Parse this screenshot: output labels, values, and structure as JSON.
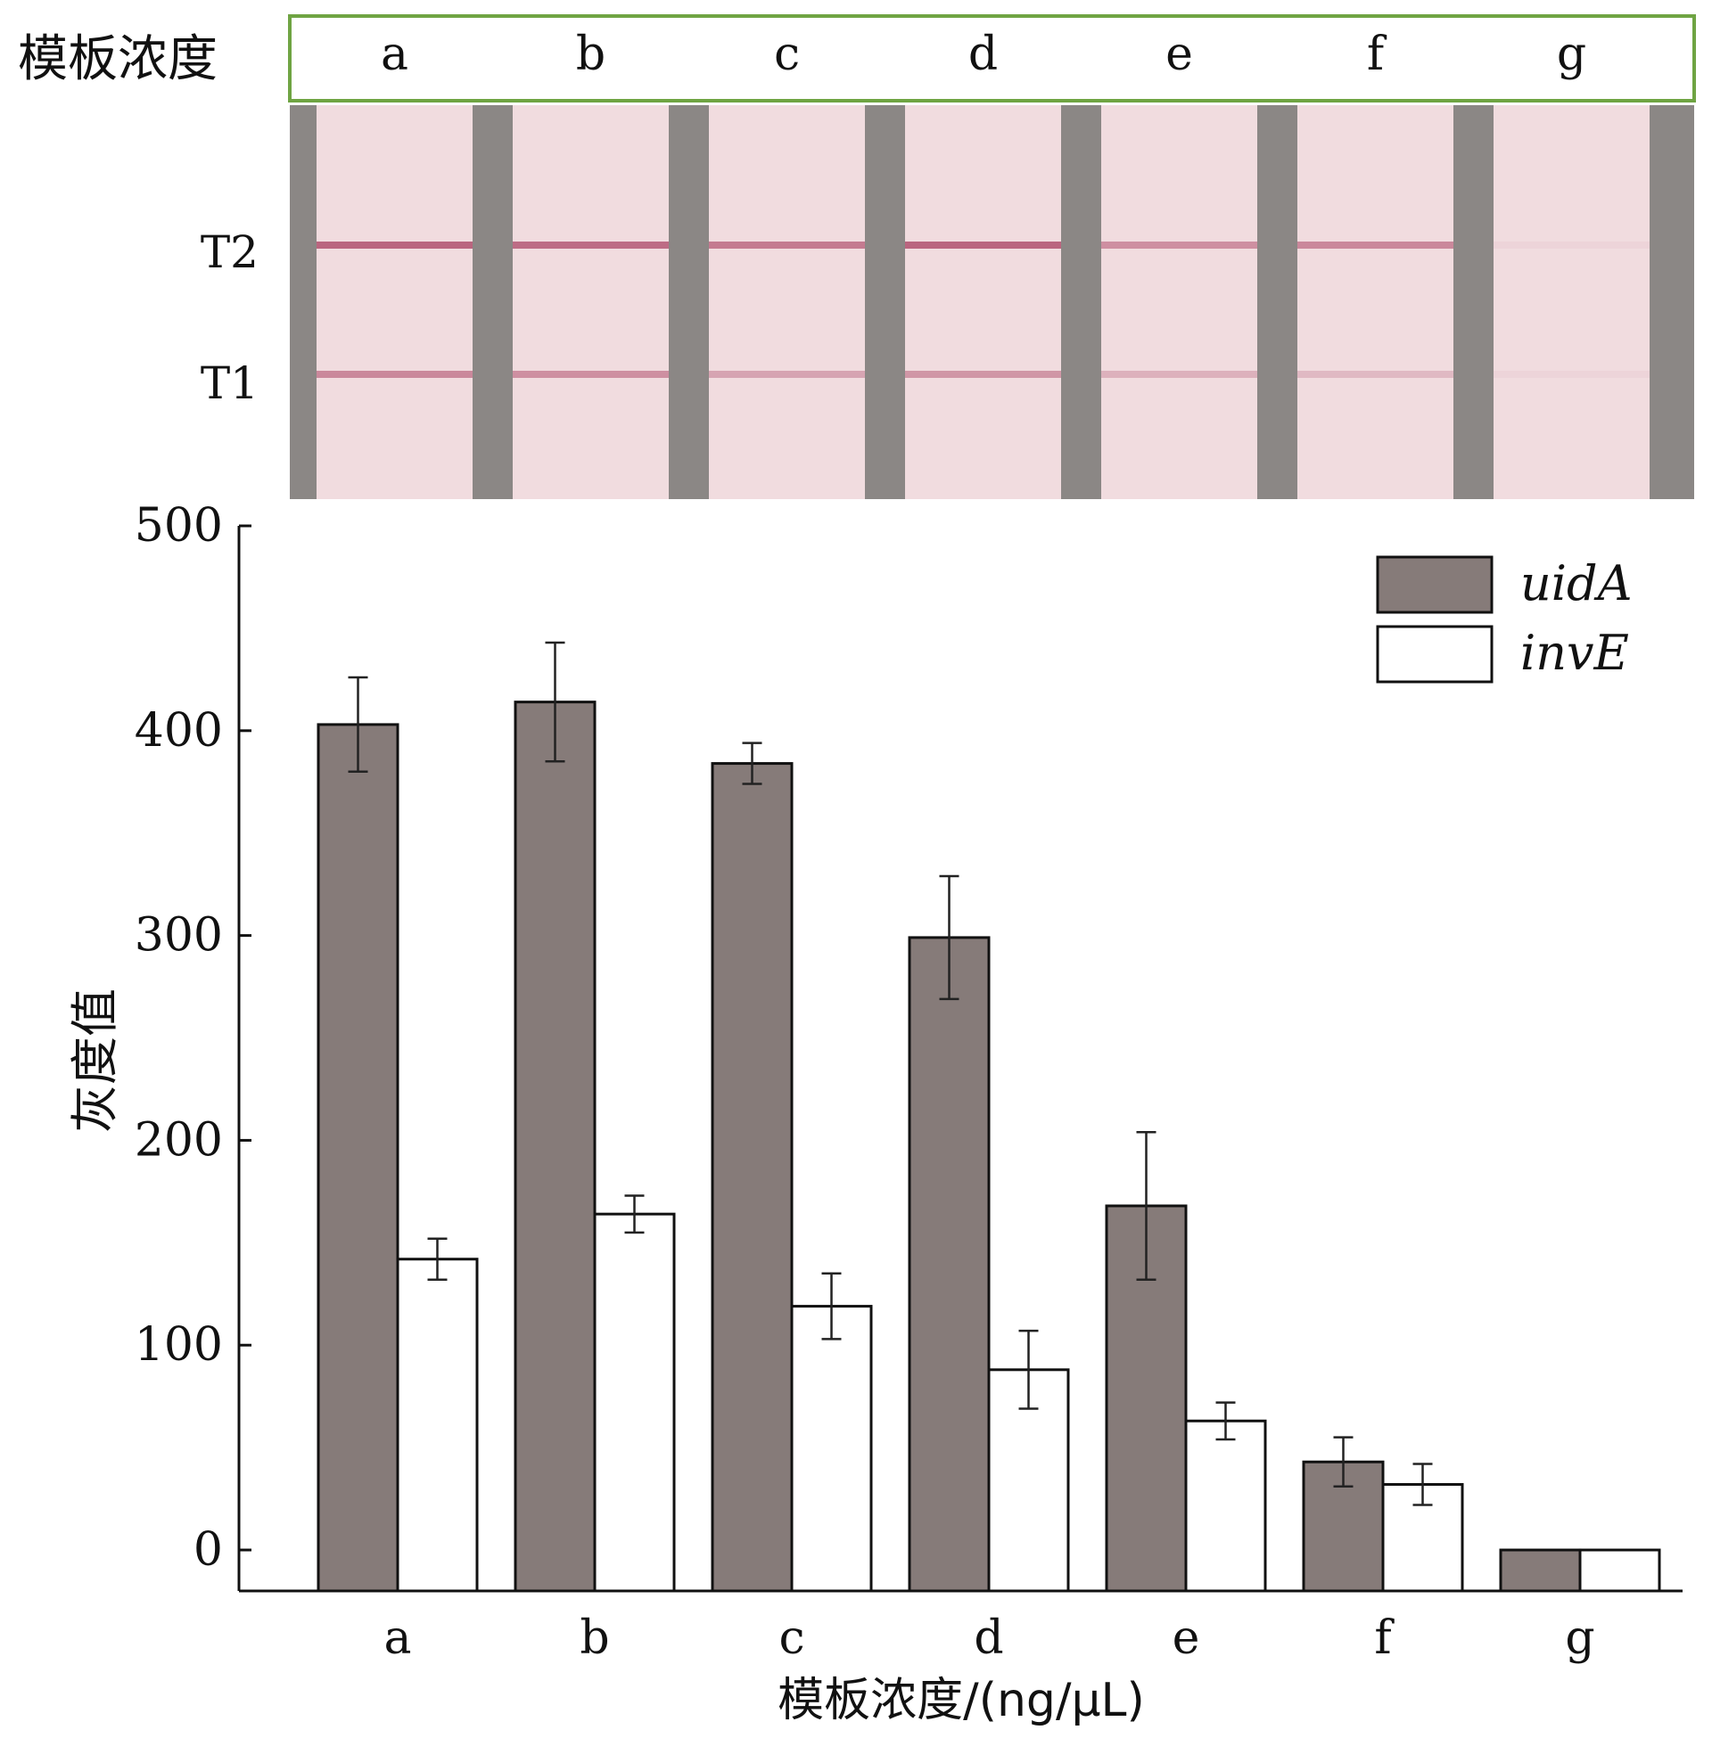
{
  "strip_panel": {
    "row_label": "模板浓度",
    "lane_labels": [
      "a",
      "b",
      "c",
      "d",
      "e",
      "f",
      "g"
    ],
    "band_labels": [
      "T2",
      "T1"
    ],
    "band_intensity": {
      "T2": [
        0.85,
        0.8,
        0.7,
        0.85,
        0.55,
        0.6,
        0.05
      ],
      "T1": [
        0.6,
        0.55,
        0.4,
        0.5,
        0.3,
        0.25,
        0.05
      ]
    },
    "colors": {
      "strip": "#f1dcdf",
      "band": "#b0506e",
      "divider": "#8b8785",
      "frame": "#6fa443"
    }
  },
  "chart_data": {
    "type": "bar",
    "categories": [
      "a",
      "b",
      "c",
      "d",
      "e",
      "f",
      "g"
    ],
    "series": [
      {
        "name": "uidA",
        "values": [
          403,
          414,
          384,
          299,
          168,
          43,
          0
        ],
        "errors": [
          23,
          29,
          10,
          30,
          36,
          12,
          0
        ],
        "color": "#867b79"
      },
      {
        "name": "invE",
        "values": [
          142,
          164,
          119,
          88,
          63,
          32,
          0
        ],
        "errors": [
          10,
          9,
          16,
          19,
          9,
          10,
          0
        ],
        "color": "#ffffff"
      }
    ],
    "xlabel": "模板浓度/(ng/μL)",
    "ylabel": "灰度值",
    "ylim": [
      -20,
      500
    ],
    "yticks": [
      0,
      100,
      200,
      300,
      400,
      500
    ],
    "grid": false,
    "legend_position": "top-right"
  }
}
